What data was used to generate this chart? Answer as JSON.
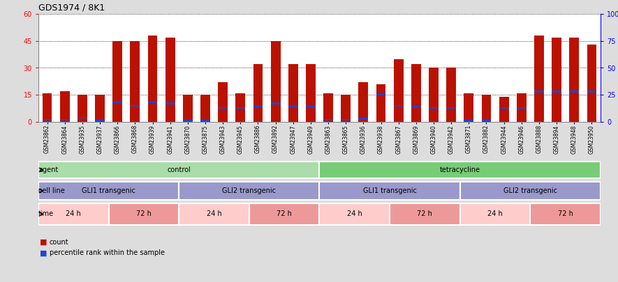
{
  "title": "GDS1974 / 8K1",
  "samples": [
    "GSM23862",
    "GSM23864",
    "GSM23935",
    "GSM23937",
    "GSM23866",
    "GSM23868",
    "GSM23939",
    "GSM23941",
    "GSM23870",
    "GSM23875",
    "GSM23943",
    "GSM23945",
    "GSM23886",
    "GSM23892",
    "GSM23947",
    "GSM23949",
    "GSM23863",
    "GSM23865",
    "GSM23936",
    "GSM23938",
    "GSM23867",
    "GSM23869",
    "GSM23940",
    "GSM23942",
    "GSM23871",
    "GSM23882",
    "GSM23944",
    "GSM23946",
    "GSM23888",
    "GSM23894",
    "GSM23948",
    "GSM23950"
  ],
  "counts": [
    16,
    17,
    15,
    15,
    45,
    45,
    48,
    47,
    15,
    15,
    22,
    16,
    32,
    45,
    32,
    32,
    16,
    15,
    22,
    21,
    35,
    32,
    30,
    30,
    16,
    15,
    14,
    16,
    48,
    47,
    47,
    43
  ],
  "percentile_vals": [
    2,
    2,
    4,
    1,
    18,
    15,
    18,
    17,
    1,
    1,
    13,
    13,
    14,
    17,
    14,
    14,
    2,
    2,
    3,
    25,
    15,
    14,
    13,
    13,
    1,
    1,
    13,
    13,
    28,
    28,
    28,
    28
  ],
  "bar_color": "#bb1100",
  "blue_color": "#2244cc",
  "ylim_left": [
    0,
    60
  ],
  "ylim_right": [
    0,
    100
  ],
  "yticks_left": [
    0,
    15,
    30,
    45,
    60
  ],
  "yticks_right": [
    0,
    25,
    50,
    75,
    100
  ],
  "agent_groups": [
    {
      "label": "control",
      "start": 0,
      "end": 16,
      "color": "#aaddaa"
    },
    {
      "label": "tetracycline",
      "start": 16,
      "end": 32,
      "color": "#77cc77"
    }
  ],
  "cellline_groups": [
    {
      "label": "GLI1 transgenic",
      "start": 0,
      "end": 8,
      "color": "#9999cc"
    },
    {
      "label": "GLI2 transgenic",
      "start": 8,
      "end": 16,
      "color": "#9999cc"
    },
    {
      "label": "GLI1 transgenic",
      "start": 16,
      "end": 24,
      "color": "#9999cc"
    },
    {
      "label": "GLI2 transgenic",
      "start": 24,
      "end": 32,
      "color": "#9999cc"
    }
  ],
  "time_groups": [
    {
      "label": "24 h",
      "start": 0,
      "end": 4,
      "color": "#ffcccc"
    },
    {
      "label": "72 h",
      "start": 4,
      "end": 8,
      "color": "#ee9999"
    },
    {
      "label": "24 h",
      "start": 8,
      "end": 12,
      "color": "#ffcccc"
    },
    {
      "label": "72 h",
      "start": 12,
      "end": 16,
      "color": "#ee9999"
    },
    {
      "label": "24 h",
      "start": 16,
      "end": 20,
      "color": "#ffcccc"
    },
    {
      "label": "72 h",
      "start": 20,
      "end": 24,
      "color": "#ee9999"
    },
    {
      "label": "24 h",
      "start": 24,
      "end": 28,
      "color": "#ffcccc"
    },
    {
      "label": "72 h",
      "start": 28,
      "end": 32,
      "color": "#ee9999"
    }
  ],
  "fig_bg": "#dddddd",
  "plot_bg": "#ffffff",
  "bar_width": 0.55
}
